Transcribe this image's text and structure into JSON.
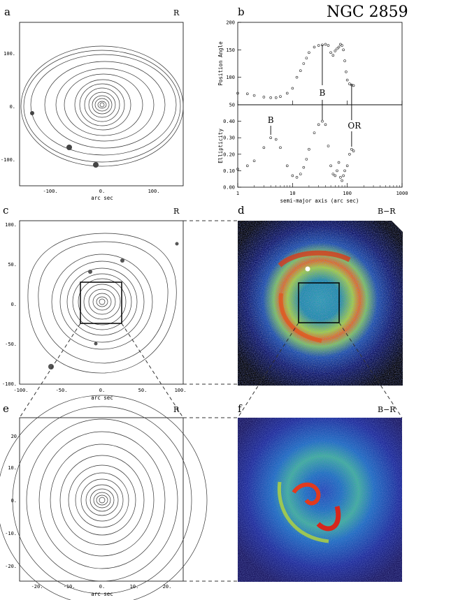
{
  "figure": {
    "title": "NGC 2859",
    "panels": [
      {
        "id": "a",
        "letter": "a",
        "band": "R"
      },
      {
        "id": "b",
        "letter": "b"
      },
      {
        "id": "c",
        "letter": "c",
        "band": "R"
      },
      {
        "id": "d",
        "letter": "d",
        "band": "B−R"
      },
      {
        "id": "e",
        "letter": "e",
        "band": "R"
      },
      {
        "id": "f",
        "letter": "f",
        "band": "B−R"
      }
    ],
    "axis_label_arcsec": "arc sec",
    "panel_a": {
      "xticks": [
        "-100.",
        "0.",
        "100."
      ],
      "yticks": [
        "100.",
        "0.",
        "-100."
      ]
    },
    "panel_c": {
      "xticks": [
        "-100.",
        "-50.",
        "0.",
        "50.",
        "100."
      ],
      "yticks": [
        "100.",
        "50.",
        "0.",
        "-50.",
        "-100."
      ]
    },
    "panel_e": {
      "xticks": [
        "-20.",
        "-10.",
        "0.",
        "10.",
        "20."
      ],
      "yticks": [
        "20",
        "10.",
        "0.",
        "-10.",
        "-20."
      ]
    }
  },
  "chart_data": {
    "type": "scatter",
    "xlabel": "semi-major axis (arc sec)",
    "x_scale": "log",
    "xlim": [
      1,
      1000
    ],
    "x_ticks": [
      "1",
      "10",
      "100",
      "1000"
    ],
    "series": [
      {
        "name": "Position Angle",
        "ylabel": "Position Angle",
        "ylim": [
          50,
          200
        ],
        "y_ticks": [
          "200",
          "150",
          "100",
          "50"
        ],
        "x": [
          1,
          1.5,
          2,
          3,
          4,
          5,
          6,
          8,
          10,
          12,
          14,
          16,
          18,
          20,
          25,
          30,
          35,
          40,
          45,
          50,
          55,
          60,
          65,
          70,
          75,
          80,
          85,
          90,
          95,
          100,
          110,
          120,
          130
        ],
        "values": [
          71,
          70,
          67,
          64,
          63,
          63,
          65,
          71,
          80,
          100,
          112,
          125,
          135,
          145,
          155,
          158,
          159,
          160,
          158,
          145,
          140,
          148,
          152,
          155,
          160,
          158,
          150,
          130,
          110,
          95,
          88,
          86,
          85
        ]
      },
      {
        "name": "Ellipticity",
        "ylabel": "Ellipticity",
        "ylim": [
          0,
          0.5
        ],
        "y_ticks": [
          "0.40",
          "0.30",
          "0.20",
          "0.10",
          "0.00"
        ],
        "x": [
          1,
          1.5,
          2,
          3,
          4,
          5,
          6,
          8,
          10,
          12,
          14,
          16,
          18,
          20,
          25,
          30,
          35,
          40,
          45,
          50,
          55,
          60,
          65,
          70,
          75,
          80,
          85,
          90,
          100,
          110,
          120,
          130
        ],
        "values": [
          0.11,
          0.13,
          0.16,
          0.24,
          0.3,
          0.29,
          0.24,
          0.13,
          0.07,
          0.06,
          0.08,
          0.12,
          0.17,
          0.23,
          0.33,
          0.38,
          0.4,
          0.38,
          0.25,
          0.13,
          0.08,
          0.07,
          0.1,
          0.15,
          0.06,
          0.04,
          0.07,
          0.1,
          0.13,
          0.2,
          0.23,
          0.22
        ]
      }
    ],
    "annotations": [
      {
        "text": "B",
        "x": 4,
        "panel": "Ellipticity"
      },
      {
        "text": "B",
        "x": 35,
        "panel": "Position Angle"
      },
      {
        "text": "OR",
        "x": 120,
        "panel": "Ellipticity"
      }
    ]
  }
}
